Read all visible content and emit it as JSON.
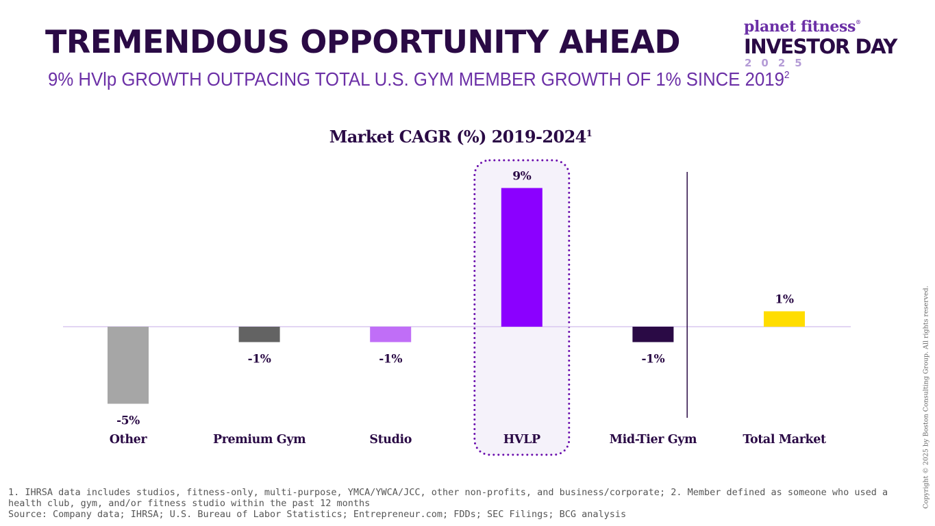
{
  "slide": {
    "title": "TREMENDOUS OPPORTUNITY AHEAD",
    "subtitle": "9% HVlp GROWTH OUTPACING TOTAL U.S. GYM MEMBER GROWTH OF 1% SINCE 2019",
    "subtitle_sup": "2"
  },
  "logo": {
    "brand": "planet fitness",
    "registered": "®",
    "event": "INVESTOR DAY",
    "year": "2025"
  },
  "chart_data": {
    "type": "bar",
    "title": "Market CAGR (%) 2019-2024",
    "title_sup": "1",
    "categories": [
      "Other",
      "Premium Gym",
      "Studio",
      "HVLP",
      "Mid-Tier Gym",
      "Total Market"
    ],
    "values": [
      -5,
      -1,
      -1,
      9,
      -1,
      1
    ],
    "value_labels": [
      "-5%",
      "-1%",
      "-1%",
      "9%",
      "-1%",
      "1%"
    ],
    "colors": [
      "#a6a6a6",
      "#636363",
      "#c06ef7",
      "#8b00ff",
      "#2a0a45",
      "#ffdd00"
    ],
    "highlighted_category": "HVLP",
    "separator_before": "Total Market",
    "ylim": [
      -5,
      9
    ],
    "xlabel": "",
    "ylabel": ""
  },
  "footnotes": {
    "line1": "1. IHRSA data includes studios, fitness-only, multi-purpose, YMCA/YWCA/JCC, other non-profits, and business/corporate; 2. Member defined as someone who used a health club, gym, and/or fitness studio within the past 12 months",
    "source": "Source: Company data; IHRSA; U.S. Bureau of Labor Statistics; Entrepreneur.com; FDDs; SEC Filings; BCG analysis"
  },
  "copyright": "Copyright © 2025 by Boston Consulting Group. All rights reserved.",
  "colors": {
    "title": "#2a0a45",
    "subtitle": "#6b2fa6",
    "highlight_border": "#6a0dad",
    "highlight_fill": "#f5f2fa",
    "axis": "#d9c7ef",
    "separator": "#2a0a45"
  }
}
